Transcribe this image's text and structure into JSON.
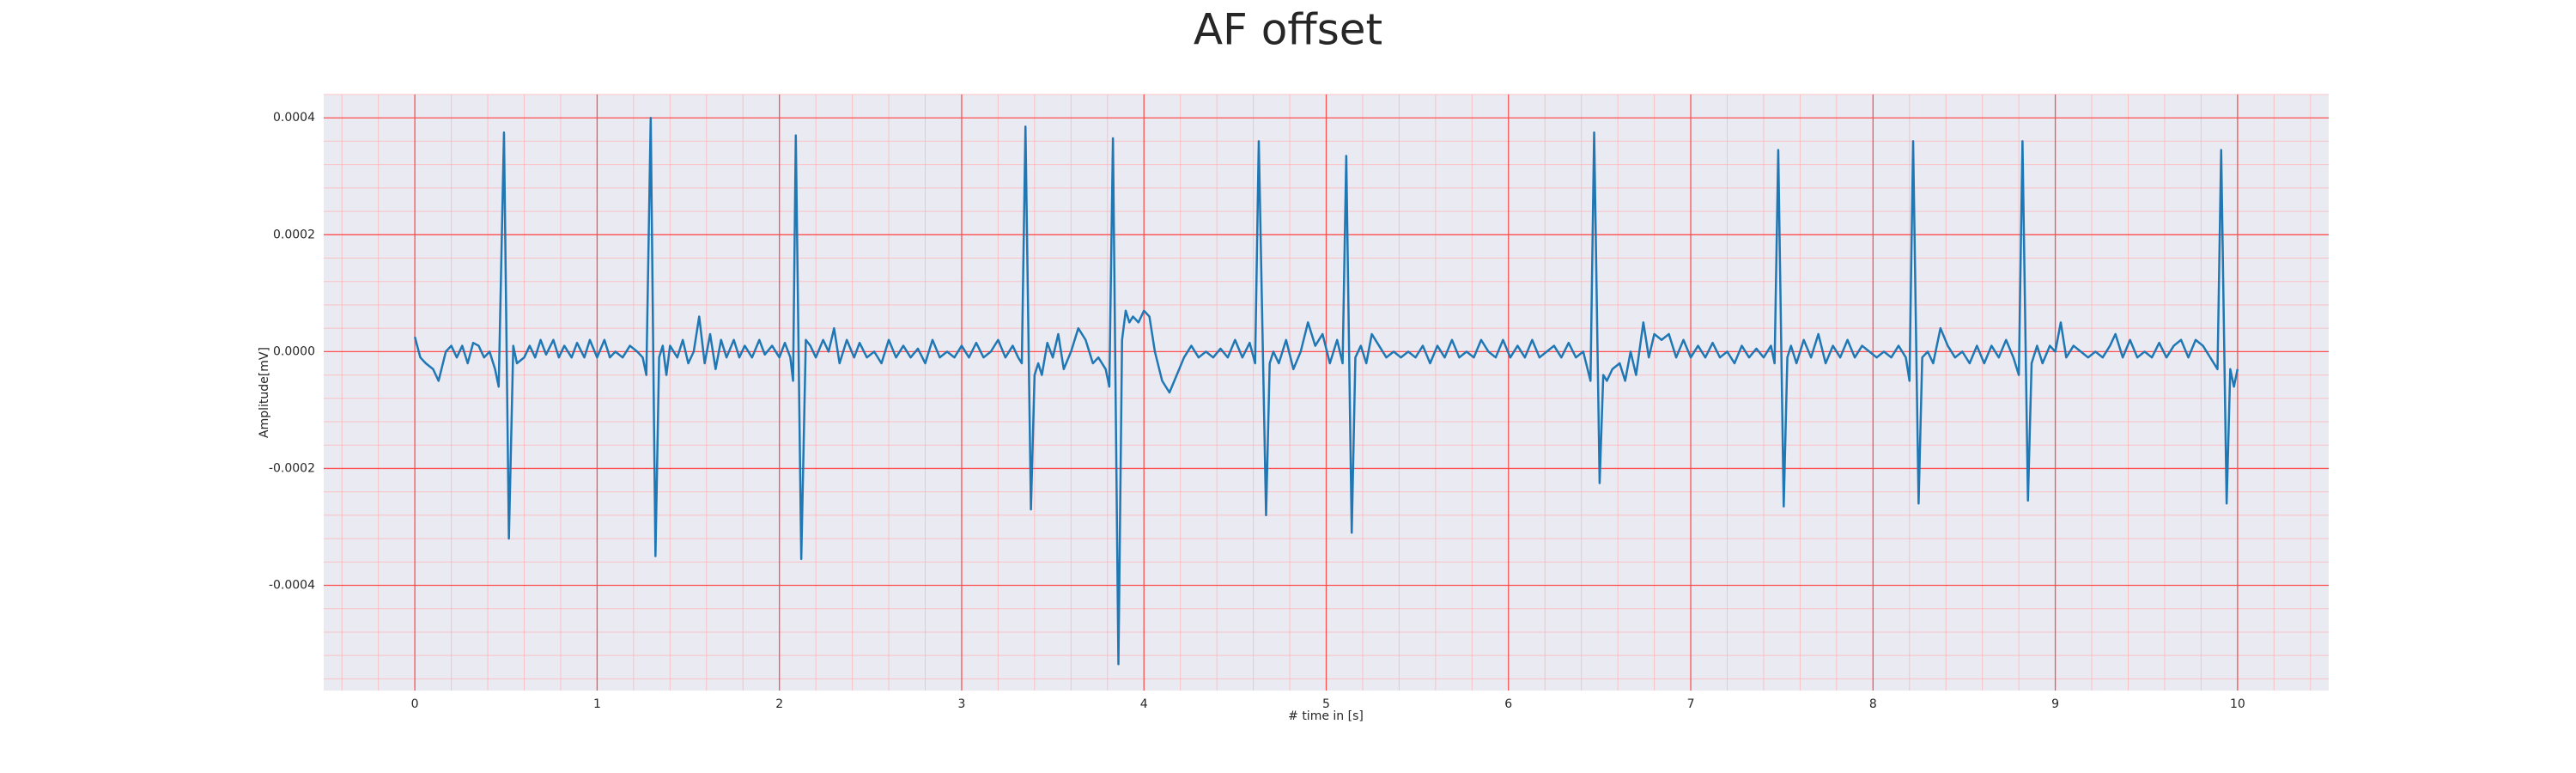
{
  "chart_data": {
    "type": "line",
    "title": "AF offset",
    "xlabel": "# time in [s]",
    "ylabel": "Amplitude[mV]",
    "color": "#1f77b4",
    "grid": true,
    "minor_grid": true,
    "xlim": [
      -0.5,
      10.5
    ],
    "ylim": [
      -0.00058,
      0.00044
    ],
    "xticks": [
      0,
      1,
      2,
      3,
      4,
      5,
      6,
      7,
      8,
      9,
      10
    ],
    "yticks": [
      -0.0004,
      -0.0002,
      {
        "value": 0,
        "label": "0.0000"
      },
      0.0002,
      0.0004
    ],
    "x": [
      0.0,
      0.03,
      0.06,
      0.1,
      0.13,
      0.17,
      0.2,
      0.23,
      0.26,
      0.29,
      0.32,
      0.35,
      0.38,
      0.41,
      0.44,
      0.46,
      0.489,
      0.516,
      0.54,
      0.56,
      0.6,
      0.63,
      0.66,
      0.69,
      0.72,
      0.76,
      0.79,
      0.82,
      0.86,
      0.89,
      0.93,
      0.96,
      1.0,
      1.04,
      1.07,
      1.1,
      1.14,
      1.18,
      1.22,
      1.25,
      1.27,
      1.294,
      1.32,
      1.34,
      1.36,
      1.38,
      1.4,
      1.44,
      1.47,
      1.5,
      1.53,
      1.56,
      1.59,
      1.62,
      1.65,
      1.68,
      1.71,
      1.75,
      1.78,
      1.81,
      1.85,
      1.89,
      1.92,
      1.96,
      2.0,
      2.03,
      2.06,
      2.075,
      2.09,
      2.12,
      2.145,
      2.17,
      2.2,
      2.24,
      2.27,
      2.3,
      2.33,
      2.37,
      2.41,
      2.44,
      2.48,
      2.52,
      2.56,
      2.6,
      2.64,
      2.68,
      2.72,
      2.76,
      2.8,
      2.84,
      2.88,
      2.92,
      2.96,
      3.0,
      3.04,
      3.08,
      3.12,
      3.16,
      3.2,
      3.24,
      3.28,
      3.31,
      3.33,
      3.35,
      3.38,
      3.4,
      3.42,
      3.44,
      3.47,
      3.5,
      3.53,
      3.56,
      3.6,
      3.64,
      3.68,
      3.72,
      3.75,
      3.79,
      3.81,
      3.83,
      3.86,
      3.88,
      3.9,
      3.92,
      3.94,
      3.97,
      4.0,
      4.03,
      4.06,
      4.1,
      4.14,
      4.18,
      4.22,
      4.26,
      4.3,
      4.34,
      4.38,
      4.42,
      4.46,
      4.5,
      4.54,
      4.58,
      4.61,
      4.63,
      4.67,
      4.69,
      4.71,
      4.74,
      4.78,
      4.82,
      4.86,
      4.9,
      4.94,
      4.98,
      5.02,
      5.06,
      5.09,
      5.11,
      5.14,
      5.16,
      5.19,
      5.22,
      5.25,
      5.29,
      5.33,
      5.37,
      5.41,
      5.45,
      5.49,
      5.53,
      5.57,
      5.61,
      5.65,
      5.69,
      5.73,
      5.77,
      5.81,
      5.85,
      5.89,
      5.93,
      5.97,
      6.01,
      6.05,
      6.09,
      6.13,
      6.17,
      6.21,
      6.25,
      6.29,
      6.33,
      6.37,
      6.41,
      6.45,
      6.47,
      6.5,
      6.52,
      6.54,
      6.57,
      6.61,
      6.64,
      6.67,
      6.7,
      6.74,
      6.77,
      6.8,
      6.84,
      6.88,
      6.92,
      6.96,
      7.0,
      7.04,
      7.08,
      7.12,
      7.16,
      7.2,
      7.24,
      7.28,
      7.32,
      7.36,
      7.4,
      7.44,
      7.46,
      7.48,
      7.51,
      7.53,
      7.55,
      7.58,
      7.62,
      7.66,
      7.7,
      7.74,
      7.78,
      7.82,
      7.86,
      7.9,
      7.94,
      7.98,
      8.02,
      8.06,
      8.1,
      8.14,
      8.18,
      8.2,
      8.22,
      8.25,
      8.27,
      8.3,
      8.33,
      8.37,
      8.41,
      8.45,
      8.49,
      8.53,
      8.57,
      8.61,
      8.65,
      8.69,
      8.73,
      8.77,
      8.8,
      8.82,
      8.85,
      8.87,
      8.9,
      8.93,
      8.97,
      9.0,
      9.03,
      9.06,
      9.1,
      9.14,
      9.18,
      9.22,
      9.26,
      9.3,
      9.33,
      9.37,
      9.41,
      9.45,
      9.49,
      9.53,
      9.57,
      9.61,
      9.65,
      9.69,
      9.73,
      9.77,
      9.81,
      9.85,
      9.89,
      9.91,
      9.94,
      9.96,
      9.98,
      10.0
    ],
    "values": [
      2.5e-05,
      -1e-05,
      -2e-05,
      -3e-05,
      -5e-05,
      0.0,
      1e-05,
      -1e-05,
      1e-05,
      -2e-05,
      1.5e-05,
      1e-05,
      -1e-05,
      0.0,
      -3e-05,
      -6e-05,
      0.000375,
      -0.00032,
      1e-05,
      -2e-05,
      -1e-05,
      1e-05,
      -1e-05,
      2e-05,
      -5e-06,
      2e-05,
      -1e-05,
      1e-05,
      -1e-05,
      1.5e-05,
      -1e-05,
      2e-05,
      -1e-05,
      2e-05,
      -1e-05,
      0.0,
      -1e-05,
      1e-05,
      0.0,
      -1e-05,
      -4e-05,
      0.0004,
      -0.00035,
      -1e-05,
      1e-05,
      -4e-05,
      1e-05,
      -1e-05,
      2e-05,
      -2e-05,
      0.0,
      6e-05,
      -2e-05,
      3e-05,
      -3e-05,
      2e-05,
      -1e-05,
      2e-05,
      -1e-05,
      1e-05,
      -1e-05,
      2e-05,
      -5e-06,
      1e-05,
      -1e-05,
      1.5e-05,
      -1e-05,
      -5e-05,
      0.00037,
      -0.000355,
      2e-05,
      1e-05,
      -1e-05,
      2e-05,
      0.0,
      4e-05,
      -2e-05,
      2e-05,
      -1e-05,
      1.5e-05,
      -1e-05,
      0.0,
      -2e-05,
      2e-05,
      -1e-05,
      1e-05,
      -1e-05,
      5e-06,
      -2e-05,
      2e-05,
      -1e-05,
      0.0,
      -1e-05,
      1e-05,
      -1e-05,
      1.5e-05,
      -1e-05,
      0.0,
      2e-05,
      -1e-05,
      1e-05,
      -1e-05,
      -2e-05,
      0.000385,
      -0.00027,
      -4e-05,
      -2e-05,
      -4e-05,
      1.5e-05,
      -1e-05,
      3e-05,
      -3e-05,
      0.0,
      4e-05,
      2e-05,
      -2e-05,
      -1e-05,
      -3e-05,
      -6e-05,
      0.000365,
      -0.000535,
      2e-05,
      7e-05,
      5e-05,
      6e-05,
      5e-05,
      7e-05,
      6e-05,
      0.0,
      -5e-05,
      -7e-05,
      -4e-05,
      -1e-05,
      1e-05,
      -1e-05,
      0.0,
      -1e-05,
      5e-06,
      -1e-05,
      2e-05,
      -1e-05,
      1.5e-05,
      -2e-05,
      0.00036,
      -0.00028,
      -2e-05,
      0.0,
      -2e-05,
      2e-05,
      -3e-05,
      0.0,
      5e-05,
      1e-05,
      3e-05,
      -2e-05,
      2e-05,
      -2e-05,
      0.000335,
      -0.00031,
      -1e-05,
      1e-05,
      -2e-05,
      3e-05,
      1e-05,
      -1e-05,
      0.0,
      -1e-05,
      0.0,
      -1e-05,
      1e-05,
      -2e-05,
      1e-05,
      -1e-05,
      2e-05,
      -1e-05,
      0.0,
      -1e-05,
      2e-05,
      0.0,
      -1e-05,
      2e-05,
      -1e-05,
      1e-05,
      -1e-05,
      2e-05,
      -1e-05,
      0.0,
      1e-05,
      -1e-05,
      1.5e-05,
      -1e-05,
      0.0,
      -5e-05,
      0.000375,
      -0.000225,
      -4e-05,
      -5e-05,
      -3e-05,
      -2e-05,
      -5e-05,
      0.0,
      -4e-05,
      5e-05,
      -1e-05,
      3e-05,
      2e-05,
      3e-05,
      -1e-05,
      2e-05,
      -1e-05,
      1e-05,
      -1e-05,
      1.5e-05,
      -1e-05,
      0.0,
      -2e-05,
      1e-05,
      -1e-05,
      5e-06,
      -1e-05,
      1e-05,
      -2e-05,
      0.000345,
      -0.000265,
      -1e-05,
      1e-05,
      -2e-05,
      2e-05,
      -1e-05,
      3e-05,
      -2e-05,
      1e-05,
      -1e-05,
      2e-05,
      -1e-05,
      1e-05,
      0.0,
      -1e-05,
      0.0,
      -1e-05,
      1e-05,
      -1e-05,
      -5e-05,
      0.00036,
      -0.00026,
      -1e-05,
      0.0,
      -2e-05,
      4e-05,
      1e-05,
      -1e-05,
      0.0,
      -2e-05,
      1e-05,
      -2e-05,
      1e-05,
      -1e-05,
      2e-05,
      -1e-05,
      -4e-05,
      0.00036,
      -0.000255,
      -2e-05,
      1e-05,
      -2e-05,
      1e-05,
      0.0,
      5e-05,
      -1e-05,
      1e-05,
      0.0,
      -1e-05,
      0.0,
      -1e-05,
      1e-05,
      3e-05,
      -1e-05,
      2e-05,
      -1e-05,
      0.0,
      -1e-05,
      1.5e-05,
      -1e-05,
      1e-05,
      2e-05,
      -1e-05,
      2e-05,
      1e-05,
      -1e-05,
      -3e-05,
      0.000345,
      -0.00026,
      -3e-05,
      -6e-05,
      -3e-05
    ]
  }
}
